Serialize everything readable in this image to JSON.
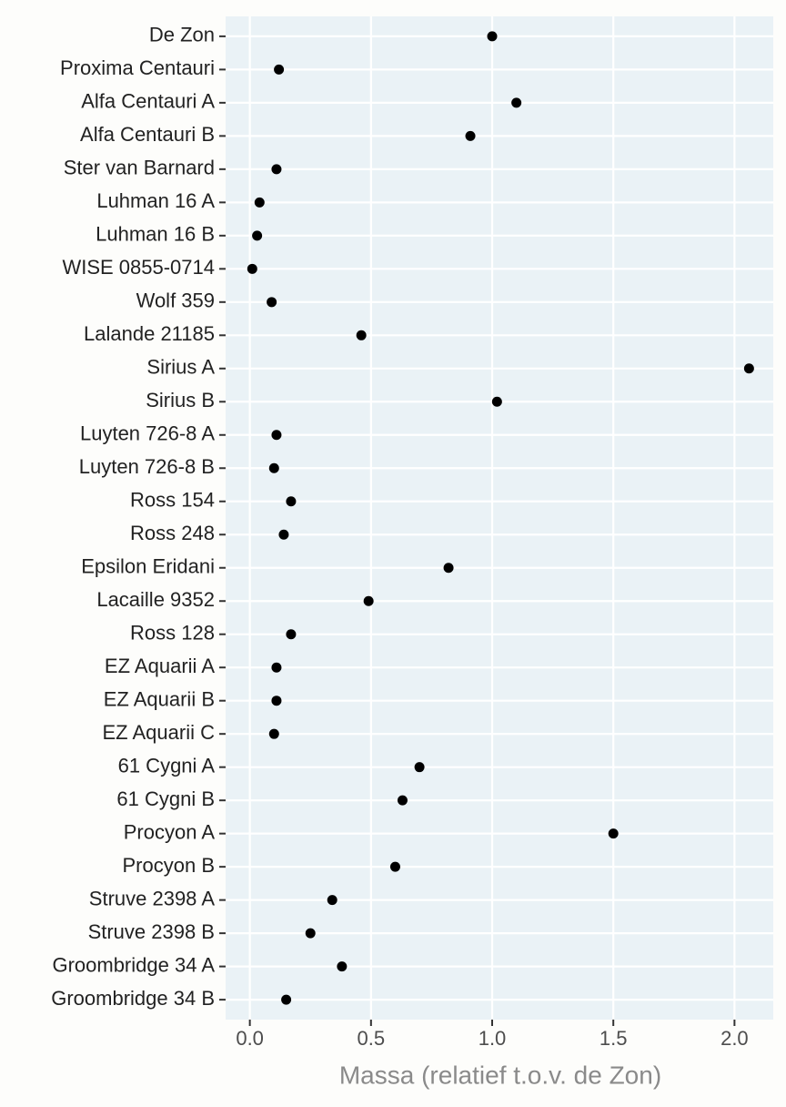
{
  "chart_data": {
    "type": "dot",
    "x_label": "Massa (relatief t.o.v. de Zon)",
    "categories": [
      "De Zon",
      "Proxima Centauri",
      "Alfa Centauri A",
      "Alfa Centauri B",
      "Ster van Barnard",
      "Luhman 16 A",
      "Luhman 16 B",
      "WISE 0855-0714",
      "Wolf 359",
      "Lalande 21185",
      "Sirius A",
      "Sirius B",
      "Luyten 726-8 A",
      "Luyten 726-8 B",
      "Ross 154",
      "Ross 248",
      "Epsilon Eridani",
      "Lacaille 9352",
      "Ross 128",
      "EZ Aquarii A",
      "EZ Aquarii B",
      "EZ Aquarii C",
      "61 Cygni A",
      "61 Cygni B",
      "Procyon A",
      "Procyon B",
      "Struve 2398 A",
      "Struve 2398 B",
      "Groombridge 34 A",
      "Groombridge 34 B"
    ],
    "values": [
      1.0,
      0.12,
      1.1,
      0.91,
      0.11,
      0.04,
      0.03,
      0.01,
      0.09,
      0.46,
      2.06,
      1.02,
      0.11,
      0.1,
      0.17,
      0.14,
      0.82,
      0.49,
      0.17,
      0.11,
      0.11,
      0.1,
      0.7,
      0.63,
      1.5,
      0.6,
      0.34,
      0.25,
      0.38,
      0.15
    ],
    "color": "#000000",
    "xlim": [
      -0.1,
      2.16
    ],
    "xticks": [
      {
        "value": 0,
        "label": "0.0"
      },
      0.5,
      {
        "value": 1,
        "label": "1.0"
      },
      1.5,
      {
        "value": 2,
        "label": "2.0"
      }
    ],
    "grid": true
  }
}
